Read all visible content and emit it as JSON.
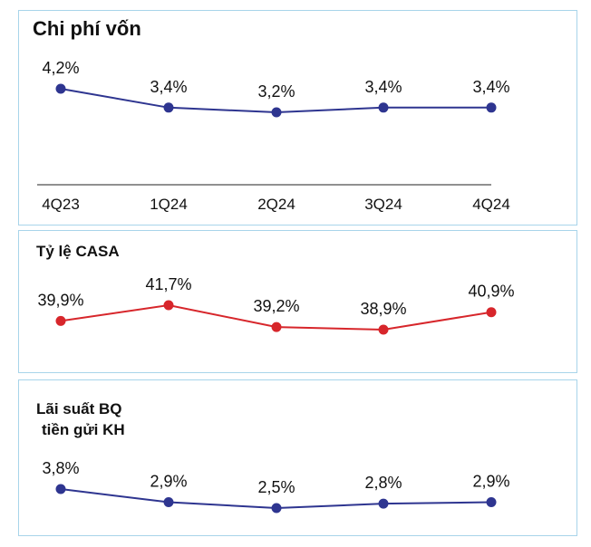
{
  "chart_data": [
    {
      "type": "line",
      "title": "Chi phí vốn",
      "categories": [
        "4Q23",
        "1Q24",
        "2Q24",
        "3Q24",
        "4Q24"
      ],
      "values": [
        4.2,
        3.4,
        3.2,
        3.4,
        3.4
      ],
      "labels": [
        "4,2%",
        "3,4%",
        "3,2%",
        "3,4%",
        "3,4%"
      ],
      "color": "#2e3590",
      "ylim": [
        0,
        5
      ],
      "grid": false,
      "legend": "none"
    },
    {
      "type": "line",
      "title": "Tỷ lệ CASA",
      "categories": [
        "4Q23",
        "1Q24",
        "2Q24",
        "3Q24",
        "4Q24"
      ],
      "values": [
        39.9,
        41.7,
        39.2,
        38.9,
        40.9
      ],
      "labels": [
        "39,9%",
        "41,7%",
        "39,2%",
        "38,9%",
        "40,9%"
      ],
      "color": "#d7262b",
      "grid": false,
      "legend": "none"
    },
    {
      "type": "line",
      "title_lines": [
        "Lãi suất BQ",
        "tiền gửi KH"
      ],
      "categories": [
        "4Q23",
        "1Q24",
        "2Q24",
        "3Q24",
        "4Q24"
      ],
      "values": [
        3.8,
        2.9,
        2.5,
        2.8,
        2.9
      ],
      "labels": [
        "3,8%",
        "2,9%",
        "2,5%",
        "2,8%",
        "2,9%"
      ],
      "color": "#2e3590",
      "grid": false,
      "legend": "none"
    }
  ]
}
